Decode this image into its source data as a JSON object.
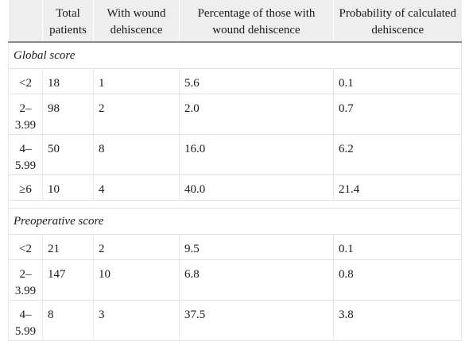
{
  "table": {
    "headers": [
      "",
      "Total patients",
      "With wound dehiscence",
      "Percentage of those with wound dehiscence",
      "Probability of calculated dehiscence"
    ],
    "sections": [
      {
        "title": "Global score",
        "rows": [
          [
            "<2",
            "18",
            "1",
            "5.6",
            "0.1"
          ],
          [
            "2–3.99",
            "98",
            "2",
            "2.0",
            "0.7"
          ],
          [
            "4–5.99",
            "50",
            "8",
            "16.0",
            "6.2"
          ],
          [
            "≥6",
            "10",
            "4",
            "40.0",
            "21.4"
          ]
        ]
      },
      {
        "title": "Preoperative score",
        "rows": [
          [
            "<2",
            "21",
            "2",
            "9.5",
            "0.1"
          ],
          [
            "2–3.99",
            "147",
            "10",
            "6.8",
            "0.8"
          ],
          [
            "4–5.99",
            "8",
            "3",
            "37.5",
            "3.8"
          ]
        ]
      }
    ]
  }
}
